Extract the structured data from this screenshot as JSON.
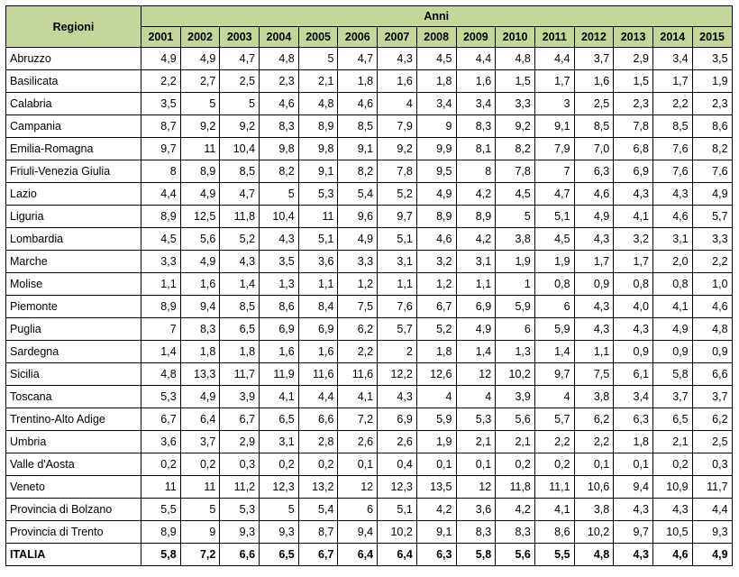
{
  "header": {
    "region_label": "Regioni",
    "years_label": "Anni",
    "years": [
      "2001",
      "2002",
      "2003",
      "2004",
      "2005",
      "2006",
      "2007",
      "2008",
      "2009",
      "2010",
      "2011",
      "2012",
      "2013",
      "2014",
      "2015"
    ]
  },
  "rows": [
    {
      "name": "Abruzzo",
      "values": [
        "4,9",
        "4,9",
        "4,7",
        "4,8",
        "5",
        "4,7",
        "4,3",
        "4,5",
        "4,4",
        "4,8",
        "4,4",
        "3,7",
        "2,9",
        "3,4",
        "3,5"
      ]
    },
    {
      "name": "Basilicata",
      "values": [
        "2,2",
        "2,7",
        "2,5",
        "2,3",
        "2,1",
        "1,8",
        "1,6",
        "1,8",
        "1,6",
        "1,5",
        "1,7",
        "1,6",
        "1,5",
        "1,7",
        "1,9"
      ]
    },
    {
      "name": "Calabria",
      "values": [
        "3,5",
        "5",
        "5",
        "4,6",
        "4,8",
        "4,6",
        "4",
        "3,4",
        "3,4",
        "3,3",
        "3",
        "2,5",
        "2,3",
        "2,2",
        "2,3"
      ]
    },
    {
      "name": "Campania",
      "values": [
        "8,7",
        "9,2",
        "9,2",
        "8,3",
        "8,9",
        "8,5",
        "7,9",
        "9",
        "8,3",
        "9,2",
        "9,1",
        "8,5",
        "7,8",
        "8,5",
        "8,6"
      ]
    },
    {
      "name": "Emilia-Romagna",
      "values": [
        "9,7",
        "11",
        "10,4",
        "9,8",
        "9,8",
        "9,1",
        "9,2",
        "9,9",
        "8,1",
        "8,2",
        "7,9",
        "7,0",
        "6,8",
        "7,6",
        "8,2"
      ]
    },
    {
      "name": "Friuli-Venezia Giulia",
      "values": [
        "8",
        "8,9",
        "8,5",
        "8,2",
        "9,1",
        "8,2",
        "7,8",
        "9,5",
        "8",
        "7,8",
        "7",
        "6,3",
        "6,9",
        "7,6",
        "7,6"
      ]
    },
    {
      "name": "Lazio",
      "values": [
        "4,4",
        "4,9",
        "4,7",
        "5",
        "5,3",
        "5,4",
        "5,2",
        "4,9",
        "4,2",
        "4,5",
        "4,7",
        "4,6",
        "4,3",
        "4,3",
        "4,9"
      ]
    },
    {
      "name": "Liguria",
      "values": [
        "8,9",
        "12,5",
        "11,8",
        "10,4",
        "11",
        "9,6",
        "9,7",
        "8,9",
        "8,9",
        "5",
        "5,1",
        "4,9",
        "4,1",
        "4,6",
        "5,7"
      ]
    },
    {
      "name": "Lombardia",
      "values": [
        "4,5",
        "5,6",
        "5,2",
        "4,3",
        "5,1",
        "4,9",
        "5,1",
        "4,6",
        "4,2",
        "3,8",
        "4,5",
        "4,3",
        "3,2",
        "3,1",
        "3,3"
      ]
    },
    {
      "name": "Marche",
      "values": [
        "3,3",
        "4,9",
        "4,3",
        "3,5",
        "3,6",
        "3,3",
        "3,1",
        "3,2",
        "3,1",
        "1,9",
        "1,9",
        "1,7",
        "1,7",
        "2,0",
        "2,2"
      ]
    },
    {
      "name": "Molise",
      "values": [
        "1,1",
        "1,6",
        "1,4",
        "1,3",
        "1,1",
        "1,2",
        "1,1",
        "1,2",
        "1,1",
        "1",
        "0,8",
        "0,9",
        "0,8",
        "0,8",
        "1,0"
      ]
    },
    {
      "name": "Piemonte",
      "values": [
        "8,9",
        "9,4",
        "8,5",
        "8,6",
        "8,4",
        "7,5",
        "7,6",
        "6,7",
        "6,9",
        "5,9",
        "6",
        "4,3",
        "4,0",
        "4,1",
        "4,6"
      ]
    },
    {
      "name": "Puglia",
      "values": [
        "7",
        "8,3",
        "6,5",
        "6,9",
        "6,9",
        "6,2",
        "5,7",
        "5,2",
        "4,9",
        "6",
        "5,9",
        "4,3",
        "4,3",
        "4,9",
        "4,8"
      ]
    },
    {
      "name": "Sardegna",
      "values": [
        "1,4",
        "1,8",
        "1,8",
        "1,6",
        "1,6",
        "2,2",
        "2",
        "1,8",
        "1,4",
        "1,3",
        "1,4",
        "1,1",
        "0,9",
        "0,9",
        "0,9"
      ]
    },
    {
      "name": "Sicilia",
      "values": [
        "4,8",
        "13,3",
        "11,7",
        "11,9",
        "11,6",
        "11,6",
        "12,2",
        "12,6",
        "12",
        "10,2",
        "9,7",
        "7,5",
        "6,1",
        "5,8",
        "6,6"
      ]
    },
    {
      "name": "Toscana",
      "values": [
        "5,3",
        "4,9",
        "3,9",
        "4,1",
        "4,4",
        "4,1",
        "4,3",
        "4",
        "4",
        "3,9",
        "4",
        "3,8",
        "3,4",
        "3,7",
        "3,7"
      ]
    },
    {
      "name": "Trentino-Alto Adige",
      "values": [
        "6,7",
        "6,4",
        "6,7",
        "6,5",
        "6,6",
        "7,2",
        "6,9",
        "5,9",
        "5,3",
        "5,6",
        "5,7",
        "6,2",
        "6,3",
        "6,5",
        "6,2"
      ]
    },
    {
      "name": "Umbria",
      "values": [
        "3,6",
        "3,7",
        "2,9",
        "3,1",
        "2,8",
        "2,6",
        "2,6",
        "1,9",
        "2,1",
        "2,1",
        "2,2",
        "2,2",
        "1,8",
        "2,1",
        "2,5"
      ]
    },
    {
      "name": "Valle d'Aosta",
      "values": [
        "0,2",
        "0,2",
        "0,3",
        "0,2",
        "0,2",
        "0,1",
        "0,4",
        "0,1",
        "0,1",
        "0,2",
        "0,2",
        "0,1",
        "0,1",
        "0,2",
        "0,3"
      ]
    },
    {
      "name": "Veneto",
      "values": [
        "11",
        "11",
        "11,2",
        "12,3",
        "13,2",
        "12",
        "12,3",
        "13,5",
        "12",
        "11,8",
        "11,1",
        "10,6",
        "9,4",
        "10,9",
        "11,7"
      ]
    },
    {
      "name": "Provincia di Bolzano",
      "values": [
        "5,5",
        "5",
        "5,3",
        "5",
        "5,4",
        "6",
        "5,1",
        "4,2",
        "3,6",
        "4,2",
        "4,1",
        "3,8",
        "4,3",
        "4,3",
        "4,4"
      ]
    },
    {
      "name": "Provincia di Trento",
      "values": [
        "8,9",
        "9",
        "9,3",
        "9,3",
        "8,7",
        "9,4",
        "10,2",
        "9,1",
        "8,3",
        "8,3",
        "8,6",
        "10,2",
        "9,7",
        "10,5",
        "9,3"
      ]
    }
  ],
  "total": {
    "name": "ITALIA",
    "values": [
      "5,8",
      "7,2",
      "6,6",
      "6,5",
      "6,7",
      "6,4",
      "6,4",
      "6,3",
      "5,8",
      "5,6",
      "5,5",
      "4,8",
      "4,3",
      "4,6",
      "4,9"
    ]
  }
}
